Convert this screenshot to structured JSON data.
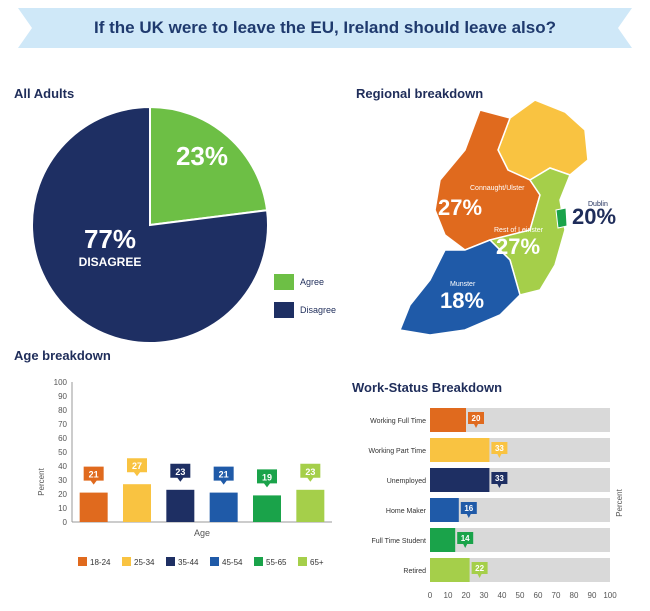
{
  "banner": {
    "title": "If the UK were to leave the EU, Ireland should leave also?"
  },
  "sections": {
    "all_adults": "All Adults",
    "regional": "Regional breakdown",
    "age": "Age breakdown",
    "work": "Work-Status Breakdown"
  },
  "colors": {
    "agree": "#6dbf45",
    "disagree": "#1e2f63",
    "banner": "#cfe8f8",
    "age_18_24": "#e06a1e",
    "age_25_34": "#f9c341",
    "age_35_44": "#1e2f63",
    "age_45_54": "#1f5aa8",
    "age_55_65": "#1aa34a",
    "age_65p": "#a5cf4a",
    "track": "#d9d9d9"
  },
  "regional": {
    "labels": {
      "connaught": "Connaught/Ulster",
      "connaught_value": "27%",
      "dublin": "Dublin",
      "dublin_value": "20%",
      "leinster": "Rest of Leinster",
      "leinster_value": "27%",
      "munster": "Munster",
      "munster_value": "18%"
    }
  },
  "chart_data": [
    {
      "type": "pie",
      "title": "All Adults",
      "labels": [
        "Agree",
        "Disagree"
      ],
      "values": [
        23,
        77
      ],
      "display": [
        "23%",
        "77%"
      ],
      "slice_label": [
        "",
        "DISAGREE"
      ],
      "legend": [
        "Agree",
        "Disagree"
      ]
    },
    {
      "type": "bar",
      "title": "Age breakdown",
      "categories": [
        "18-24",
        "25-34",
        "35-44",
        "45-54",
        "55-65",
        "65+"
      ],
      "values": [
        21,
        27,
        23,
        21,
        19,
        23
      ],
      "xlabel": "Age",
      "ylabel": "Percent",
      "ylim": [
        0,
        100
      ],
      "yticks": [
        "0",
        "10",
        "20",
        "30",
        "40",
        "50",
        "60",
        "70",
        "80",
        "90",
        "100"
      ],
      "grid": false,
      "legend_placement": "bottom"
    },
    {
      "type": "bar",
      "orientation": "horizontal",
      "title": "Work-Status Breakdown",
      "categories": [
        "Working Full Time",
        "Working Part Time",
        "Unemployed",
        "Home Maker",
        "Full Time Student",
        "Retired"
      ],
      "values": [
        20,
        33,
        33,
        16,
        14,
        22
      ],
      "ylabel": "Percent",
      "xlim": [
        0,
        100
      ],
      "xticks": [
        "0",
        "10",
        "20",
        "30",
        "40",
        "50",
        "60",
        "70",
        "80",
        "90",
        "100"
      ],
      "grid": false
    }
  ]
}
